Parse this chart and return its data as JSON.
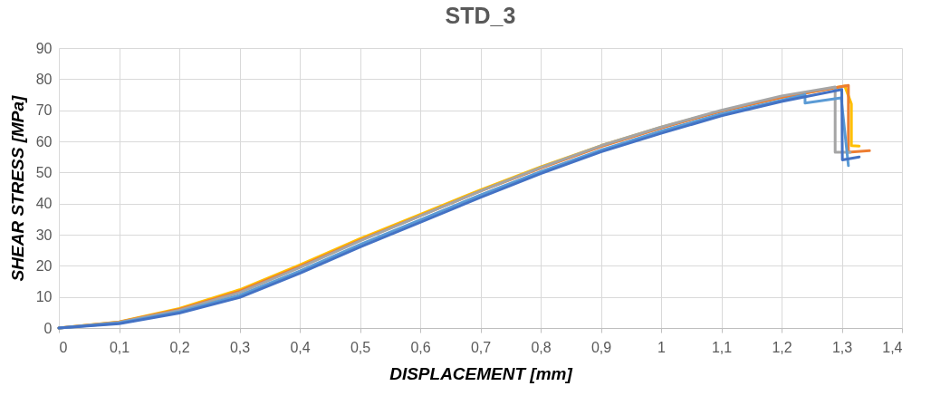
{
  "chart_data": {
    "type": "line",
    "title": "STD_3",
    "xlabel": "DISPLACEMENT [mm]",
    "ylabel": "SHEAR STRESS [MPa]",
    "xlim": [
      0,
      1.4
    ],
    "ylim": [
      0,
      90
    ],
    "xticks": [
      0,
      {
        "value": 0.1,
        "label": "0,1"
      },
      {
        "value": 0.2,
        "label": "0,2"
      },
      {
        "value": 0.3,
        "label": "0,3"
      },
      {
        "value": 0.4,
        "label": "0,4"
      },
      {
        "value": 0.5,
        "label": "0,5"
      },
      {
        "value": 0.6,
        "label": "0,6"
      },
      {
        "value": 0.7,
        "label": "0,7"
      },
      {
        "value": 0.8,
        "label": "0,8"
      },
      {
        "value": 0.9,
        "label": "0,9"
      },
      1,
      {
        "value": 1.1,
        "label": "1,1"
      },
      {
        "value": 1.2,
        "label": "1,2"
      },
      {
        "value": 1.3,
        "label": "1,3"
      },
      {
        "value": 1.4,
        "label": "1,4"
      }
    ],
    "yticks": [
      0,
      10,
      20,
      30,
      40,
      50,
      60,
      70,
      80,
      90
    ],
    "grid": true,
    "legend": false,
    "marker": "none",
    "line_style": "solid",
    "series": [
      {
        "color": "#ffc000",
        "x": [
          0,
          0.1,
          0.2,
          0.3,
          0.4,
          0.5,
          0.6,
          0.7,
          0.8,
          0.9,
          1,
          1.1,
          1.2,
          1.3,
          1.305,
          1.316,
          1.316,
          1.329
        ],
        "values": [
          0,
          2.0,
          6.3,
          12.3,
          20.3,
          28.7,
          36.5,
          44.4,
          51.8,
          58.6,
          64.5,
          69.8,
          74.2,
          77.6,
          77.8,
          72,
          58.6,
          58.5
        ]
      },
      {
        "color": "#ed7d31",
        "x": [
          0,
          0.1,
          0.2,
          0.3,
          0.4,
          0.5,
          0.6,
          0.7,
          0.8,
          0.9,
          1,
          1.1,
          1.2,
          1.3,
          1.311,
          1.311,
          1.346
        ],
        "values": [
          0,
          1.9,
          6.0,
          11.8,
          19.8,
          28.2,
          36.1,
          44,
          51.4,
          58.3,
          64.3,
          69.7,
          74.1,
          77.6,
          78,
          56.5,
          57
        ]
      },
      {
        "color": "#a5a5a5",
        "x": [
          0,
          0.1,
          0.2,
          0.3,
          0.4,
          0.5,
          0.6,
          0.7,
          0.8,
          0.9,
          1,
          1.1,
          1.2,
          1.289,
          1.289,
          1.314
        ],
        "values": [
          0,
          1.8,
          5.7,
          11.4,
          19.4,
          28,
          36,
          44,
          51.6,
          58.6,
          64.6,
          70,
          74.6,
          77.5,
          56.5,
          56.5
        ]
      },
      {
        "color": "#5b9bd5",
        "x": [
          0,
          0.1,
          0.2,
          0.3,
          0.4,
          0.5,
          0.6,
          0.7,
          0.8,
          0.9,
          1,
          1.1,
          1.2,
          1.239,
          1.239,
          1.299,
          1.311
        ],
        "values": [
          0,
          1.6,
          5.2,
          10.5,
          18.3,
          26.8,
          34.8,
          42.8,
          50.3,
          57.2,
          63.3,
          68.8,
          73.2,
          75,
          72.3,
          74,
          52.2
        ]
      },
      {
        "color": "#4472c4",
        "x": [
          0,
          0.1,
          0.2,
          0.3,
          0.4,
          0.5,
          0.6,
          0.7,
          0.8,
          0.9,
          1,
          1.1,
          1.2,
          1.3,
          1.301,
          1.329
        ],
        "values": [
          0,
          1.4,
          4.8,
          9.8,
          17.6,
          26,
          34,
          42,
          49.6,
          56.6,
          62.6,
          68.2,
          72.8,
          76.7,
          54,
          55
        ]
      }
    ]
  }
}
